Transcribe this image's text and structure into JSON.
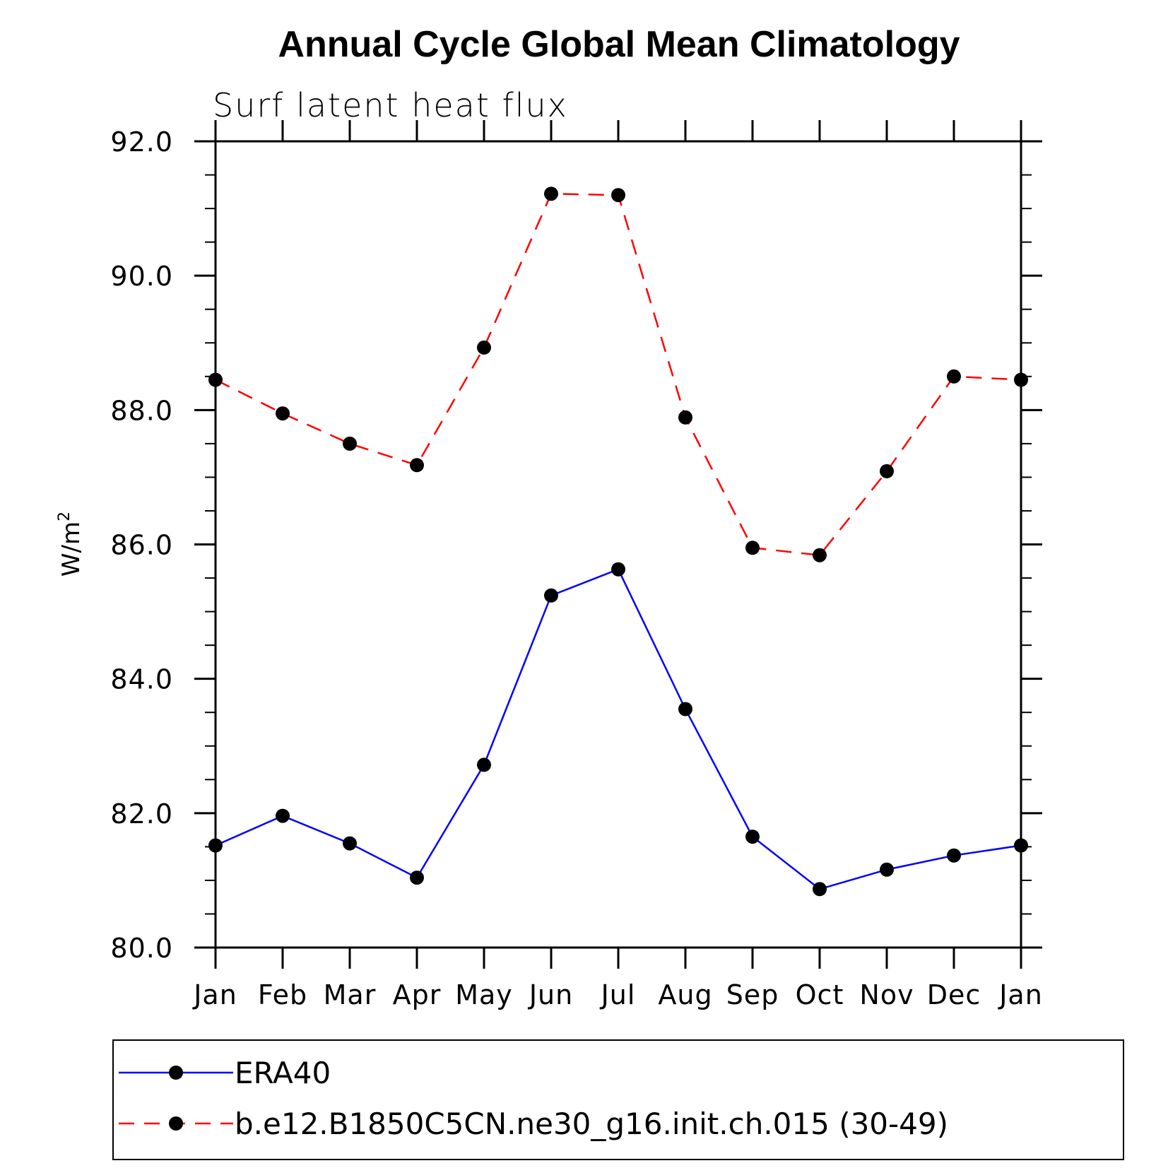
{
  "chart_data": {
    "type": "line",
    "title": "Annual Cycle Global Mean Climatology",
    "subtitle": "Surf latent heat flux",
    "ylabel": "W/m",
    "ylabel_sup": "2",
    "xlabel": "",
    "categories": [
      "Jan",
      "Feb",
      "Mar",
      "Apr",
      "May",
      "Jun",
      "Jul",
      "Aug",
      "Sep",
      "Oct",
      "Nov",
      "Dec",
      "Jan"
    ],
    "ylim": [
      80.0,
      92.0
    ],
    "yticks": [
      "80.0",
      "82.0",
      "84.0",
      "86.0",
      "88.0",
      "90.0",
      "92.0"
    ],
    "grid": false,
    "legend_position": "bottom",
    "series": [
      {
        "name": "ERA40",
        "color": "#0000ff",
        "dash": "solid",
        "marker": "filled-circle",
        "values": [
          81.52,
          81.96,
          81.55,
          81.04,
          82.72,
          85.24,
          85.63,
          83.55,
          81.65,
          80.87,
          81.16,
          81.37,
          81.52
        ]
      },
      {
        "name": "b.e12.B1850C5CN.ne30_g16.init.ch.015 (30-49)",
        "color": "#ff0000",
        "dash": "dashed",
        "marker": "filled-circle",
        "values": [
          88.45,
          87.95,
          87.5,
          87.18,
          88.93,
          91.22,
          91.2,
          87.89,
          85.95,
          85.84,
          87.09,
          88.5,
          88.45
        ]
      }
    ]
  }
}
